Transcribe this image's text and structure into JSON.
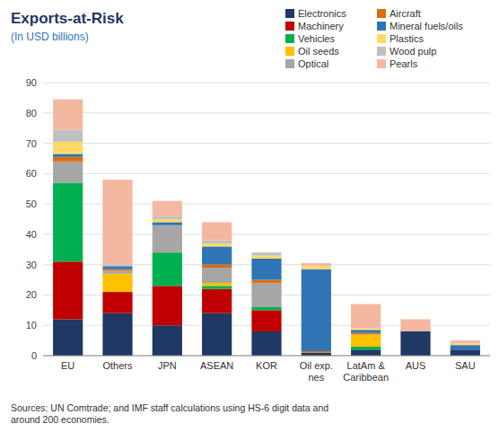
{
  "chart_data": {
    "type": "bar",
    "stacked": true,
    "title": "Exports-at-Risk",
    "subtitle": "(In USD billions)",
    "annotations": [
      "Sources: UN Comtrade; and IMF staff calculations using HS-6 digit data and\naround 200 economies."
    ],
    "categories": [
      "EU",
      "Others",
      "JPN",
      "ASEAN",
      "KOR",
      "Oil exp.\nnes",
      "LatAm &\nCaribbean",
      "AUS",
      "SAU"
    ],
    "series": [
      {
        "name": "Electronics",
        "color": "#1f3864",
        "values": [
          12,
          14,
          10,
          14,
          8,
          1,
          2,
          8,
          2
        ]
      },
      {
        "name": "Machinery",
        "color": "#c00000",
        "values": [
          19,
          7,
          13,
          8,
          7,
          0,
          0,
          0,
          0
        ]
      },
      {
        "name": "Vehicles",
        "color": "#00b050",
        "values": [
          26,
          0,
          11,
          1,
          1,
          0,
          1,
          0,
          0
        ]
      },
      {
        "name": "Oil seeds",
        "color": "#ffc000",
        "values": [
          0,
          6,
          0,
          1,
          0,
          0,
          4,
          0,
          0
        ]
      },
      {
        "name": "Optical",
        "color": "#a6a6a6",
        "values": [
          7,
          1,
          9,
          5,
          8,
          0,
          0,
          0,
          0
        ]
      },
      {
        "name": "Aircraft",
        "color": "#e26b0a",
        "values": [
          1.5,
          0.5,
          0,
          1,
          1,
          0.5,
          0.5,
          0,
          0
        ]
      },
      {
        "name": "Mineral fuels/oils",
        "color": "#2e75b6",
        "values": [
          1,
          1,
          1,
          6,
          7,
          27,
          1,
          0,
          1.5
        ]
      },
      {
        "name": "Plastics",
        "color": "#ffd966",
        "values": [
          4,
          0,
          1,
          1,
          1,
          1,
          0.5,
          0,
          0.5
        ]
      },
      {
        "name": "Wood pulp",
        "color": "#c0c0c0",
        "values": [
          4,
          0.5,
          1,
          1,
          1,
          0,
          0,
          0,
          0
        ]
      },
      {
        "name": "Pearls",
        "color": "#f4b8a0",
        "values": [
          10,
          28,
          5,
          6,
          0,
          1,
          8,
          4,
          1
        ]
      }
    ],
    "ylim": [
      0,
      90
    ],
    "yticks": [
      0,
      10,
      20,
      30,
      40,
      50,
      60,
      70,
      80,
      90
    ],
    "grid": true,
    "legend": "upper right"
  }
}
